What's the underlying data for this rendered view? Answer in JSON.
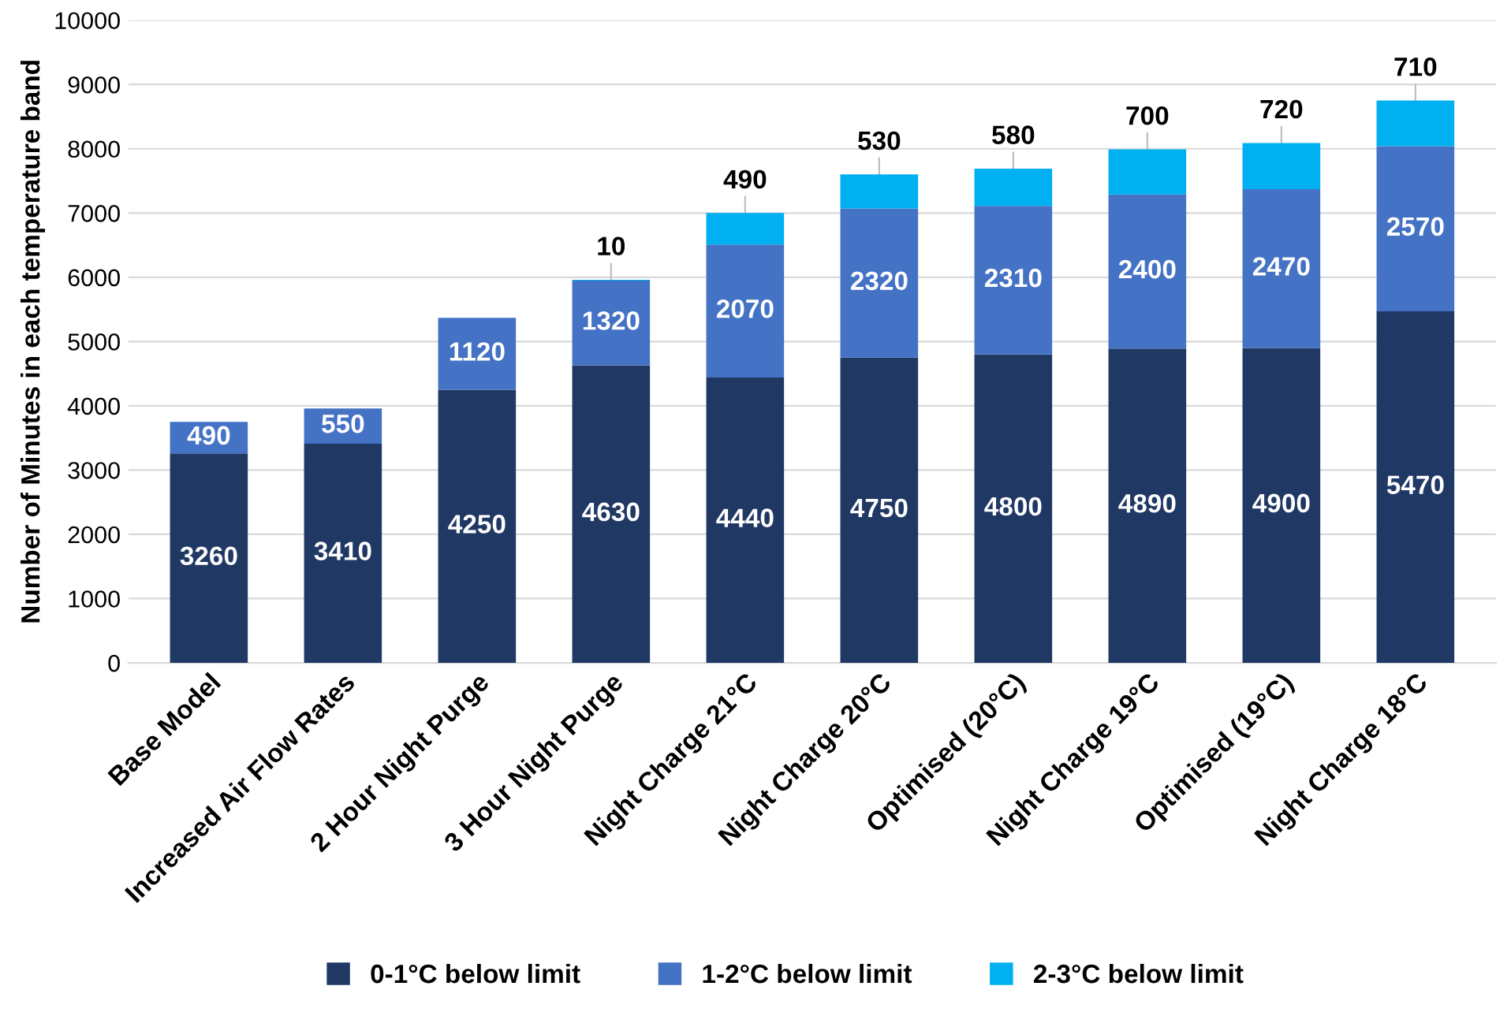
{
  "chart_data": {
    "type": "bar",
    "stacked": true,
    "ylabel": "Number of Minutes in each temperature band",
    "categories": [
      "Base Model",
      "Increased Air Flow Rates",
      "2 Hour Night Purge",
      "3 Hour Night Purge",
      "Night Charge 21°C",
      "Night Charge 20°C",
      "Optimised (20°C)",
      "Night Charge 19°C",
      "Optimised (19°C)",
      "Night Charge 18°C"
    ],
    "series": [
      {
        "name": "0-1°C below limit",
        "color": "#203864",
        "values": [
          3260,
          3410,
          4250,
          4630,
          4440,
          4750,
          4800,
          4890,
          4900,
          5470
        ]
      },
      {
        "name": "1-2°C below limit",
        "color": "#4472c4",
        "values": [
          490,
          550,
          1120,
          1320,
          2070,
          2320,
          2310,
          2400,
          2470,
          2570
        ]
      },
      {
        "name": "2-3°C below limit",
        "color": "#00b0f0",
        "values": [
          null,
          null,
          null,
          10,
          490,
          530,
          580,
          700,
          720,
          710
        ]
      }
    ],
    "data_labels": true,
    "ylim": [
      0,
      10000
    ],
    "yticks": [
      0,
      1000,
      2000,
      3000,
      4000,
      5000,
      6000,
      7000,
      8000,
      9000,
      10000
    ],
    "grid": "y",
    "legend": "bottom"
  }
}
